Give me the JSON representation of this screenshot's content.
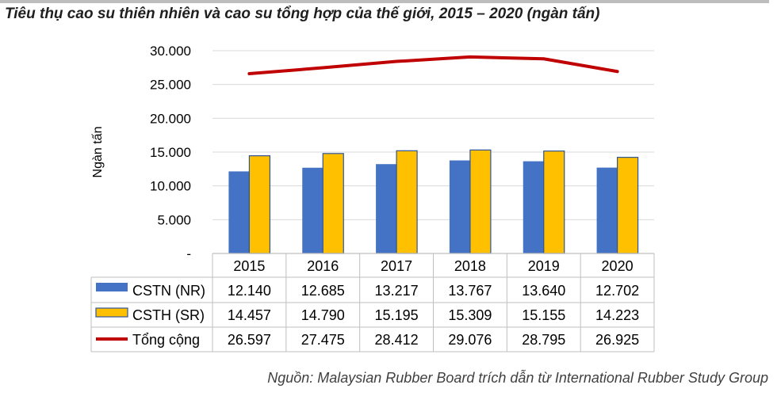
{
  "title": "Tiêu thụ cao su thiên nhiên và cao su tổng hợp của thế giới, 2015 – 2020 (ngàn tấn)",
  "source": "Nguồn: Malaysian Rubber Board trích dẫn từ International Rubber Study Group",
  "colors": {
    "nr": "#4472c4",
    "sr": "#ffc000",
    "total": "#c00000",
    "grid": "#d9d9d9"
  },
  "chart_data": {
    "type": "bar",
    "ylabel": "Ngàn tấn",
    "xlabel": "",
    "ylim": [
      0,
      30000
    ],
    "yticks": [
      {
        "value": 0,
        "label": "-"
      },
      {
        "value": 5000,
        "label": "5.000"
      },
      {
        "value": 10000,
        "label": "10.000"
      },
      {
        "value": 15000,
        "label": "15.000"
      },
      {
        "value": 20000,
        "label": "20.000"
      },
      {
        "value": 25000,
        "label": "25.000"
      },
      {
        "value": 30000,
        "label": "30.000"
      }
    ],
    "grid": true,
    "legend": "data-table",
    "categories": [
      "2015",
      "2016",
      "2017",
      "2018",
      "2019",
      "2020"
    ],
    "series": [
      {
        "name": "CSTN (NR)",
        "kind": "bar",
        "values": [
          12140,
          12685,
          13217,
          13767,
          13640,
          12702
        ],
        "labels": [
          "12.140",
          "12.685",
          "13.217",
          "13.767",
          "13.640",
          "12.702"
        ]
      },
      {
        "name": "CSTH (SR)",
        "kind": "bar",
        "values": [
          14457,
          14790,
          15195,
          15309,
          15155,
          14223
        ],
        "labels": [
          "14.457",
          "14.790",
          "15.195",
          "15.309",
          "15.155",
          "14.223"
        ]
      },
      {
        "name": "Tổng cộng",
        "kind": "line",
        "values": [
          26597,
          27475,
          28412,
          29076,
          28795,
          26925
        ],
        "labels": [
          "26.597",
          "27.475",
          "28.412",
          "29.076",
          "28.795",
          "26.925"
        ]
      }
    ]
  }
}
